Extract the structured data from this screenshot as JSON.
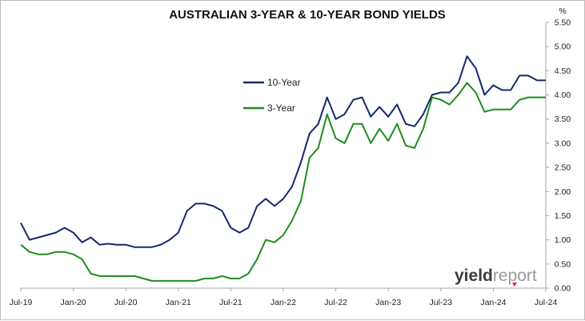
{
  "chart_data": {
    "type": "line",
    "title": "AUSTRALIAN 3-YEAR & 10-YEAR BOND YIELDS",
    "y_unit": "%",
    "ylim": [
      0,
      5.5
    ],
    "y_ticks": [
      "0.00",
      "0.50",
      "1.00",
      "1.50",
      "2.00",
      "2.50",
      "3.00",
      "3.50",
      "4.00",
      "4.50",
      "5.00",
      "5.50"
    ],
    "x_ticks": [
      "Jul-19",
      "Jan-20",
      "Jul-20",
      "Jan-21",
      "Jul-21",
      "Jan-22",
      "Jul-22",
      "Jan-23",
      "Jul-23",
      "Jan-24",
      "Jul-24"
    ],
    "x": [
      "2019-07",
      "2019-08",
      "2019-09",
      "2019-10",
      "2019-11",
      "2019-12",
      "2020-01",
      "2020-02",
      "2020-03",
      "2020-04",
      "2020-05",
      "2020-06",
      "2020-07",
      "2020-08",
      "2020-09",
      "2020-10",
      "2020-11",
      "2020-12",
      "2021-01",
      "2021-02",
      "2021-03",
      "2021-04",
      "2021-05",
      "2021-06",
      "2021-07",
      "2021-08",
      "2021-09",
      "2021-10",
      "2021-11",
      "2021-12",
      "2022-01",
      "2022-02",
      "2022-03",
      "2022-04",
      "2022-05",
      "2022-06",
      "2022-07",
      "2022-08",
      "2022-09",
      "2022-10",
      "2022-11",
      "2022-12",
      "2023-01",
      "2023-02",
      "2023-03",
      "2023-04",
      "2023-05",
      "2023-06",
      "2023-07",
      "2023-08",
      "2023-09",
      "2023-10",
      "2023-11",
      "2023-12",
      "2024-01",
      "2024-02",
      "2024-03",
      "2024-04",
      "2024-05",
      "2024-06",
      "2024-07"
    ],
    "series": [
      {
        "name": "10-Year",
        "color": "#14286e",
        "values": [
          1.35,
          1.0,
          1.05,
          1.1,
          1.15,
          1.25,
          1.15,
          0.95,
          1.05,
          0.9,
          0.92,
          0.9,
          0.9,
          0.85,
          0.85,
          0.85,
          0.9,
          1.0,
          1.15,
          1.6,
          1.75,
          1.75,
          1.7,
          1.6,
          1.25,
          1.15,
          1.25,
          1.7,
          1.85,
          1.7,
          1.85,
          2.1,
          2.6,
          3.2,
          3.4,
          3.95,
          3.5,
          3.6,
          3.9,
          3.95,
          3.55,
          3.75,
          3.55,
          3.8,
          3.4,
          3.35,
          3.6,
          4.0,
          4.05,
          4.05,
          4.25,
          4.8,
          4.55,
          4.0,
          4.2,
          4.1,
          4.1,
          4.4,
          4.4,
          4.3,
          4.3
        ]
      },
      {
        "name": "3-Year",
        "color": "#1e8c1e",
        "values": [
          0.9,
          0.75,
          0.7,
          0.7,
          0.75,
          0.75,
          0.7,
          0.6,
          0.3,
          0.25,
          0.25,
          0.25,
          0.25,
          0.25,
          0.2,
          0.15,
          0.15,
          0.15,
          0.15,
          0.15,
          0.15,
          0.2,
          0.2,
          0.25,
          0.2,
          0.2,
          0.3,
          0.6,
          1.0,
          0.95,
          1.1,
          1.4,
          1.8,
          2.7,
          2.9,
          3.6,
          3.1,
          3.0,
          3.4,
          3.4,
          3.0,
          3.3,
          3.05,
          3.4,
          2.95,
          2.9,
          3.3,
          3.95,
          3.9,
          3.8,
          4.0,
          4.25,
          4.05,
          3.65,
          3.7,
          3.7,
          3.7,
          3.9,
          3.95,
          3.95,
          3.95
        ]
      }
    ],
    "legend_placement": "upper-center",
    "grid": false
  },
  "brand": {
    "part1": "yield",
    "part2": "report"
  }
}
